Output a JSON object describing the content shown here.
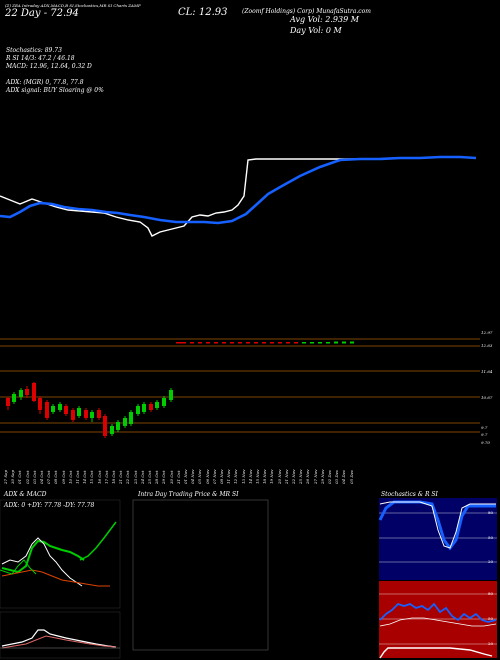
{
  "header": {
    "top_line": "(Z) ZEA Intraday ADX,MACD,B SI,Stochastics,MR SI Charts ZAMP",
    "date_line": "22 Day - 72.94",
    "company": "(Zoomf Holdings) Corp) MunafaSutra.com",
    "cl": "CL: 12.93",
    "avg_vol": "Avg Vol: 2.939 M",
    "day_vol": "Day Vol: 0   M"
  },
  "indicators": {
    "stochastics": "Stochastics: 89.73",
    "rsi": "R         SI 14/3: 47.2  / 46.18",
    "macd": "MACD: 12.96,  12.64,  0.32  D",
    "adx": "ADX:                      (MGR) 0,  77.8,  77.8",
    "adx_signal": "ADX  signal:                           BUY Sloaring @ 0%"
  },
  "price_axis": {
    "labels": [
      "12.97",
      "12.63",
      "11.64",
      "10.67",
      "9.7",
      "9.7",
      "9.70"
    ]
  },
  "date_axis": {
    "labels": [
      "27 Sep",
      "30 Sep",
      "01 Oct",
      "02 Oct",
      "03 Oct",
      "04 Oct",
      "07 Oct",
      "08 Oct",
      "09 Oct",
      "10 Oct",
      "11 Oct",
      "14 Oct",
      "15 Oct",
      "16 Oct",
      "17 Oct",
      "18 Oct",
      "21 Oct",
      "22 Oct",
      "23 Oct",
      "24 Oct",
      "25 Oct",
      "28 Oct",
      "29 Oct",
      "30 Oct",
      "31 Oct",
      "01 Nov",
      "04 Nov",
      "05 Nov",
      "06 Nov",
      "07 Nov",
      "08 Nov",
      "11 Nov",
      "12 Nov",
      "13 Nov",
      "14 Nov",
      "15 Nov",
      "18 Nov",
      "19 Nov",
      "20 Nov",
      "21 Nov",
      "22 Nov",
      "25 Nov",
      "26 Nov",
      "27 Nov",
      "29 Nov",
      "02 Dec",
      "03 Dec",
      "04 Dec",
      "05 Dec"
    ]
  },
  "panels": {
    "adx_title": "ADX  & MACD",
    "adx_values": "ADX: 0     +DY: 77.78     -DY: 77.78",
    "mrsi_title": "Intra  Day Trading Price  & MR                   SI",
    "stoch_title": "Stochastics & R                 SI",
    "stoch_ticks": [
      "80",
      "50",
      "20"
    ],
    "rsi_ticks": [
      "80",
      "50",
      "20"
    ]
  },
  "colors": {
    "bull": "#00cc00",
    "bear": "#dd0000",
    "ma_line": "#1560ff",
    "price_line": "#ffffff",
    "grid_orange": "#a85a00",
    "rsi_bg": "#a80000",
    "stoch_bg": "#000066"
  }
}
